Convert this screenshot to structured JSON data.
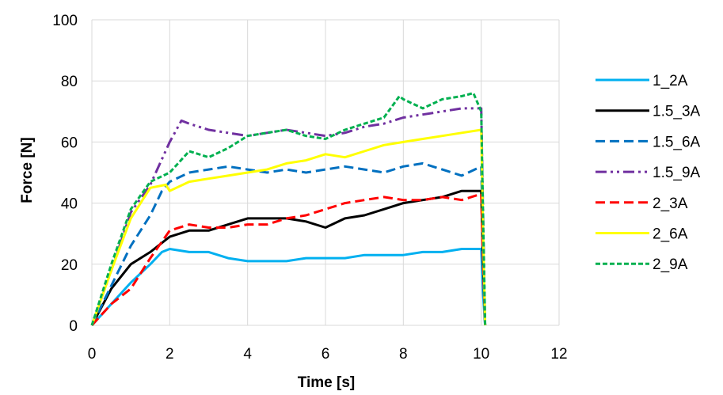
{
  "chart_data": {
    "type": "line",
    "title": "",
    "xlabel": "Time  [s]",
    "ylabel": "Force [N]",
    "xlim": [
      0,
      12
    ],
    "ylim": [
      0,
      100
    ],
    "xticks": [
      0,
      2,
      4,
      6,
      8,
      10,
      12
    ],
    "yticks": [
      0,
      20,
      40,
      60,
      80,
      100
    ],
    "grid": true,
    "legend_position": "right",
    "series": [
      {
        "name": "1_2A",
        "color": "#00B0F0",
        "dash": "solid",
        "x": [
          0,
          0.5,
          1,
          1.5,
          1.8,
          2,
          2.5,
          3,
          3.5,
          4,
          4.5,
          5,
          5.5,
          6,
          6.5,
          7,
          7.5,
          8,
          8.5,
          9,
          9.5,
          10,
          10.05,
          10.1
        ],
        "y": [
          0,
          7,
          14,
          20,
          24,
          25,
          24,
          24,
          22,
          21,
          21,
          21,
          22,
          22,
          22,
          23,
          23,
          23,
          24,
          24,
          25,
          25,
          10,
          0
        ]
      },
      {
        "name": "1.5_3A",
        "color": "#000000",
        "dash": "solid",
        "x": [
          0,
          0.5,
          1,
          1.5,
          2,
          2.5,
          3,
          3.5,
          4,
          4.5,
          5,
          5.5,
          6,
          6.5,
          7,
          7.5,
          8,
          8.5,
          9,
          9.5,
          10,
          10.05,
          10.1
        ],
        "y": [
          0,
          12,
          20,
          24,
          29,
          31,
          31,
          33,
          35,
          35,
          35,
          34,
          32,
          35,
          36,
          38,
          40,
          41,
          42,
          44,
          44,
          20,
          0
        ]
      },
      {
        "name": "1.5_6A",
        "color": "#0070C0",
        "dash": "dash",
        "x": [
          0,
          0.5,
          1,
          1.5,
          1.8,
          2,
          2.5,
          3,
          3.5,
          4,
          4.5,
          5,
          5.5,
          6,
          6.5,
          7,
          7.5,
          8,
          8.5,
          9,
          9.5,
          10,
          10.05,
          10.1
        ],
        "y": [
          0,
          13,
          26,
          36,
          44,
          47,
          50,
          51,
          52,
          51,
          50,
          51,
          50,
          51,
          52,
          51,
          50,
          52,
          53,
          51,
          49,
          52,
          25,
          0
        ]
      },
      {
        "name": "1.5_9A",
        "color": "#7030A0",
        "dash": "dashdotdot",
        "x": [
          0,
          0.5,
          1,
          1.5,
          2,
          2.3,
          2.5,
          3,
          3.5,
          4,
          4.5,
          5,
          5.5,
          6,
          6.5,
          7,
          7.5,
          8,
          8.5,
          9,
          9.5,
          10,
          10.05,
          10.1
        ],
        "y": [
          0,
          18,
          37,
          46,
          60,
          67,
          66,
          64,
          63,
          62,
          63,
          64,
          63,
          62,
          63,
          65,
          66,
          68,
          69,
          70,
          71,
          71,
          35,
          0
        ]
      },
      {
        "name": "2_3A",
        "color": "#FF0000",
        "dash": "dash",
        "x": [
          0,
          0.5,
          1,
          1.5,
          2,
          2.5,
          3,
          3.5,
          4,
          4.5,
          5,
          5.5,
          6,
          6.5,
          7,
          7.5,
          8,
          8.5,
          9,
          9.5,
          10,
          10.05,
          10.1
        ],
        "y": [
          0,
          7,
          12,
          22,
          31,
          33,
          32,
          32,
          33,
          33,
          35,
          36,
          38,
          40,
          41,
          42,
          41,
          41,
          42,
          41,
          43,
          20,
          0
        ]
      },
      {
        "name": "2_6A",
        "color": "#FFFF00",
        "dash": "solid",
        "x": [
          0,
          0.5,
          1,
          1.5,
          1.9,
          2,
          2.5,
          3,
          3.5,
          4,
          4.5,
          5,
          5.5,
          6,
          6.5,
          7,
          7.5,
          8,
          8.5,
          9,
          9.5,
          10,
          10.05,
          10.1
        ],
        "y": [
          0,
          18,
          35,
          45,
          46,
          44,
          47,
          48,
          49,
          50,
          51,
          53,
          54,
          56,
          55,
          57,
          59,
          60,
          61,
          62,
          63,
          64,
          30,
          0
        ]
      },
      {
        "name": "2_9A",
        "color": "#00B050",
        "dash": "shortdash",
        "x": [
          0,
          0.5,
          1,
          1.5,
          2,
          2.5,
          3,
          3.5,
          4,
          4.5,
          5,
          5.5,
          6,
          6.5,
          7,
          7.5,
          7.9,
          8,
          8.5,
          9,
          9.5,
          9.8,
          10,
          10.05,
          10.1
        ],
        "y": [
          0,
          20,
          38,
          47,
          50,
          57,
          55,
          58,
          62,
          63,
          64,
          62,
          61,
          64,
          66,
          68,
          75,
          74,
          71,
          74,
          75,
          76,
          70,
          35,
          0
        ]
      }
    ]
  }
}
